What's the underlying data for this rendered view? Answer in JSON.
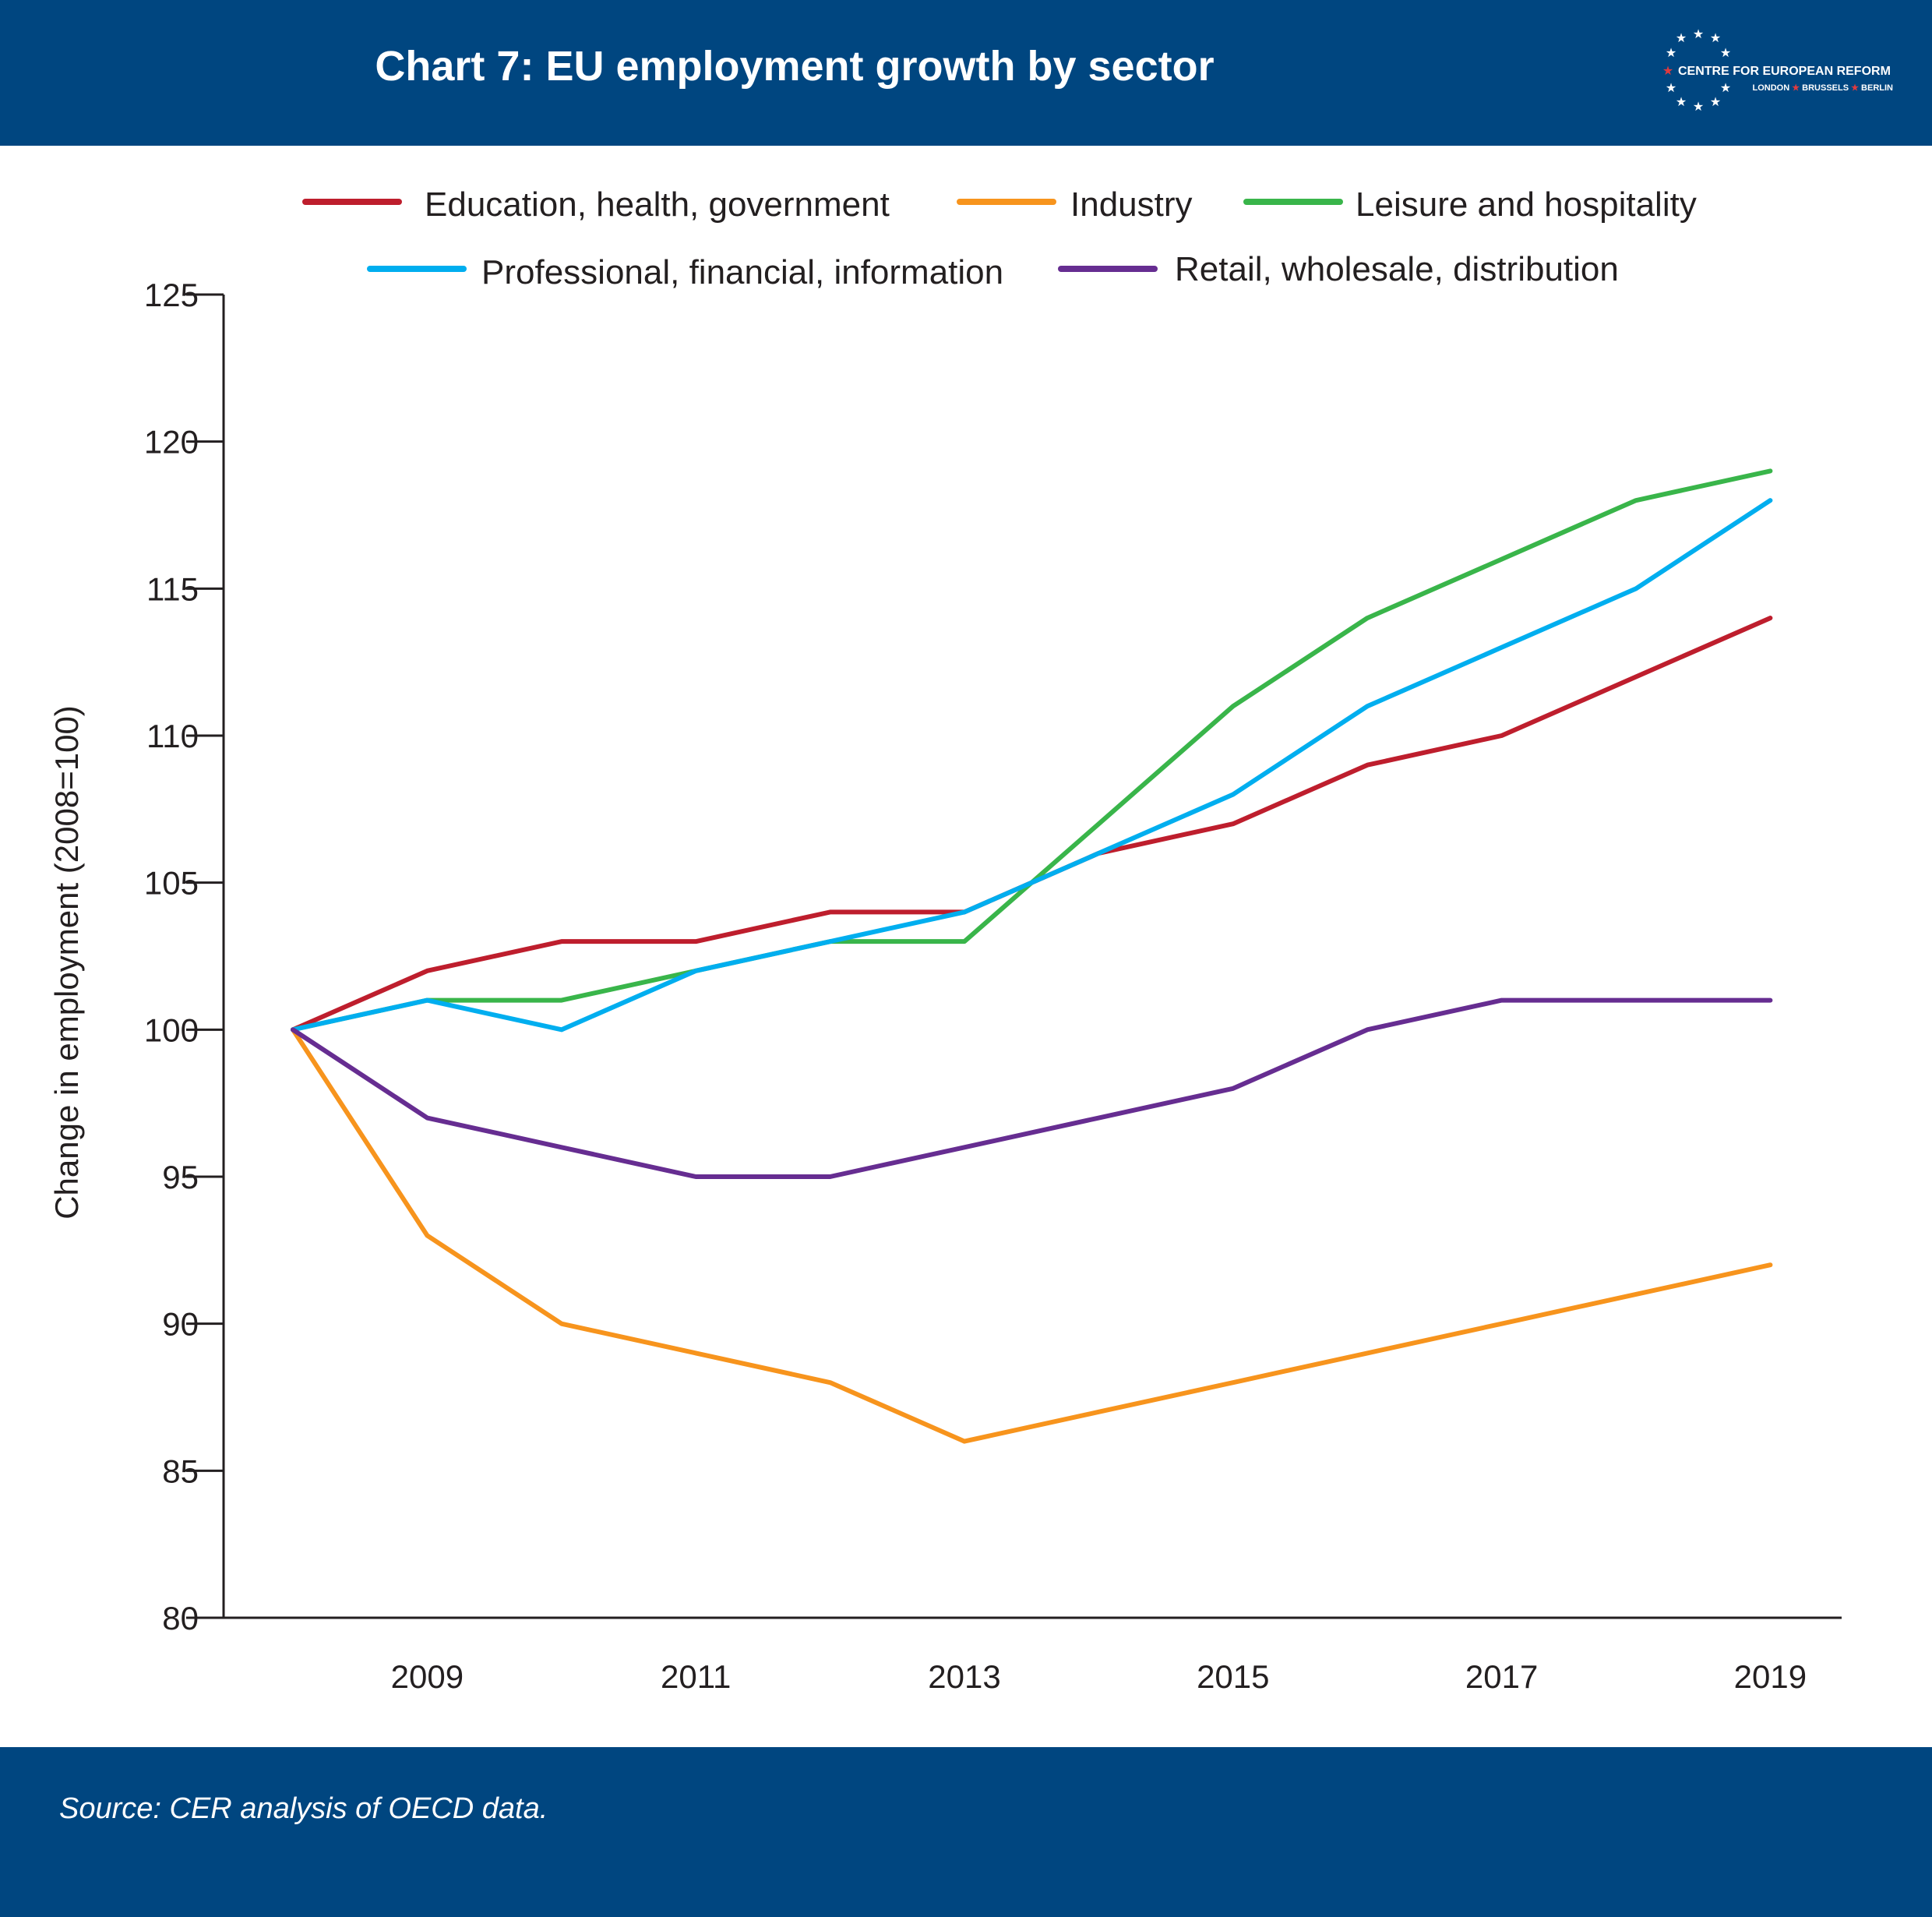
{
  "header": {
    "title": "Chart 7: EU employment growth by sector",
    "background": "#004680",
    "logo": {
      "name": "CENTRE FOR EUROPEAN REFORM",
      "cities": [
        "LONDON",
        "BRUSSELS",
        "BERLIN"
      ],
      "star_color": "#e03a3e"
    }
  },
  "footer": {
    "source": "Source: CER analysis of OECD data."
  },
  "chart_data": {
    "type": "line",
    "title": "Chart 7: EU employment growth by sector",
    "xlabel": "",
    "ylabel": "Change in employment (2008=100)",
    "ylim": [
      80,
      125
    ],
    "yticks": [
      80,
      85,
      90,
      95,
      100,
      105,
      110,
      115,
      120,
      125
    ],
    "x": [
      2008,
      2009,
      2010,
      2011,
      2012,
      2013,
      2014,
      2015,
      2016,
      2017,
      2018,
      2019
    ],
    "xticks": [
      2009,
      2011,
      2013,
      2015,
      2017,
      2019
    ],
    "grid": false,
    "legend_position": "top",
    "series": [
      {
        "name": "Education, health, government",
        "color": "#be1e2d",
        "values": [
          100,
          102,
          103,
          103,
          104,
          104,
          106,
          107,
          109,
          110,
          112,
          114
        ]
      },
      {
        "name": "Industry",
        "color": "#f7941d",
        "values": [
          100,
          93,
          90,
          89,
          88,
          86,
          87,
          88,
          89,
          90,
          91,
          92
        ]
      },
      {
        "name": "Leisure and hospitality",
        "color": "#39b54a",
        "values": [
          100,
          101,
          101,
          102,
          103,
          103,
          107,
          111,
          114,
          116,
          118,
          119
        ]
      },
      {
        "name": "Professional, financial, information",
        "color": "#00aeef",
        "values": [
          100,
          101,
          100,
          102,
          103,
          104,
          106,
          108,
          111,
          113,
          115,
          118
        ]
      },
      {
        "name": "Retail, wholesale, distribution",
        "color": "#662d91",
        "values": [
          100,
          97,
          96,
          95,
          95,
          96,
          97,
          98,
          100,
          101,
          101,
          101
        ]
      }
    ]
  }
}
